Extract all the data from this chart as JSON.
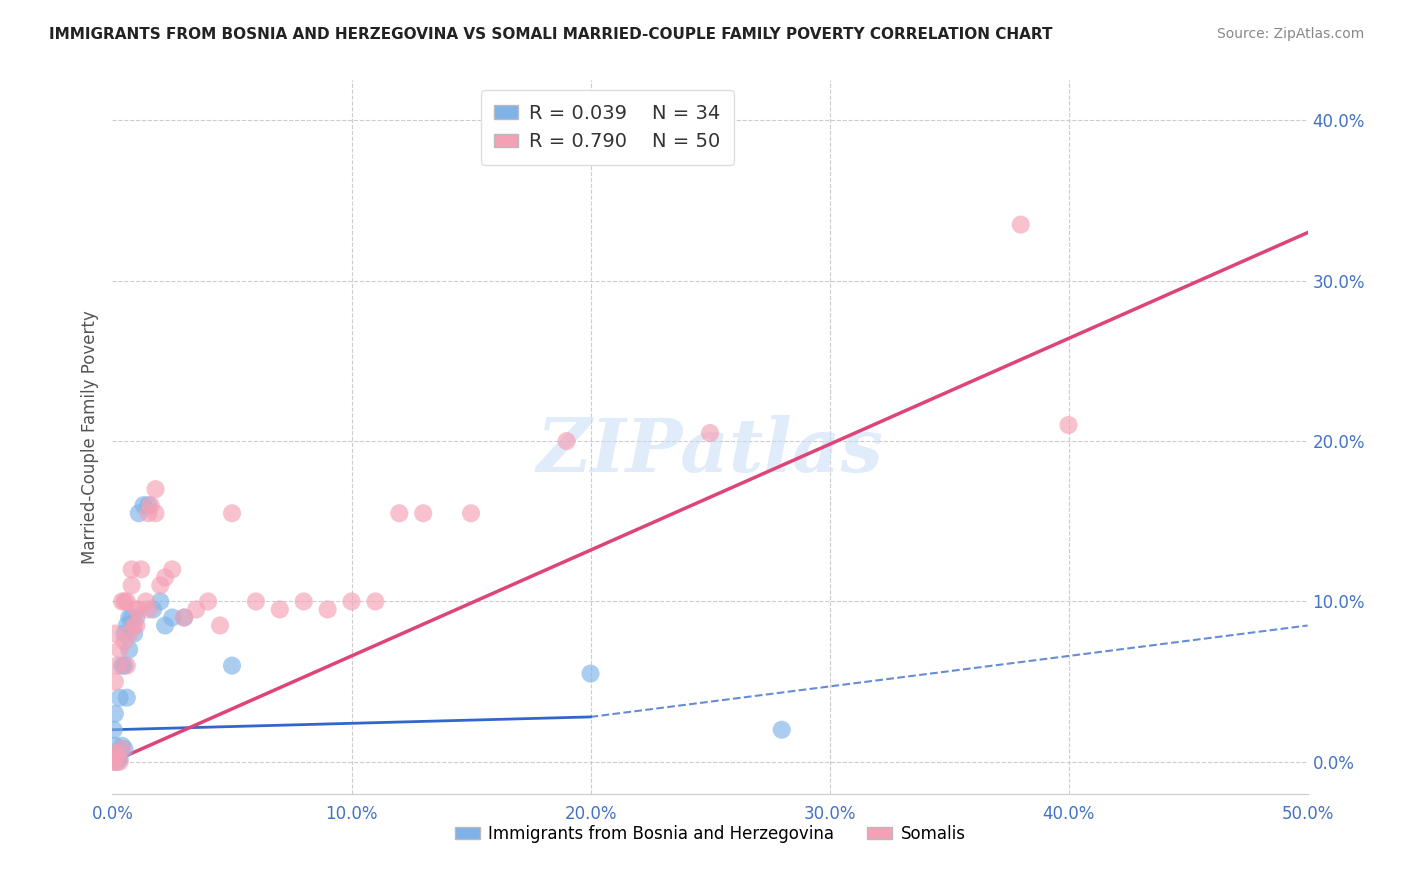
{
  "title": "IMMIGRANTS FROM BOSNIA AND HERZEGOVINA VS SOMALI MARRIED-COUPLE FAMILY POVERTY CORRELATION CHART",
  "source": "Source: ZipAtlas.com",
  "ylabel": "Married-Couple Family Poverty",
  "legend_label_1": "Immigrants from Bosnia and Herzegovina",
  "legend_label_2": "Somalis",
  "R1": 0.039,
  "N1": 34,
  "R2": 0.79,
  "N2": 50,
  "xlim": [
    0.0,
    0.5
  ],
  "ylim": [
    -0.02,
    0.425
  ],
  "xticks": [
    0.0,
    0.1,
    0.2,
    0.3,
    0.4,
    0.5
  ],
  "yticks": [
    0.0,
    0.1,
    0.2,
    0.3,
    0.4
  ],
  "color_blue": "#7fb3e8",
  "color_pink": "#f4a0b5",
  "line_color_blue": "#3366cc",
  "line_color_pink": "#dd4477",
  "bg_color": "#ffffff",
  "watermark": "ZIPatlas",
  "blue_scatter_x": [
    0.0005,
    0.001,
    0.001,
    0.001,
    0.0015,
    0.002,
    0.002,
    0.002,
    0.003,
    0.003,
    0.003,
    0.004,
    0.004,
    0.005,
    0.005,
    0.005,
    0.006,
    0.006,
    0.007,
    0.007,
    0.008,
    0.009,
    0.01,
    0.011,
    0.013,
    0.015,
    0.017,
    0.02,
    0.022,
    0.025,
    0.03,
    0.05,
    0.2,
    0.28
  ],
  "blue_scatter_y": [
    0.02,
    0.005,
    0.01,
    0.03,
    0.005,
    0.0,
    0.003,
    0.005,
    0.002,
    0.005,
    0.04,
    0.01,
    0.06,
    0.008,
    0.06,
    0.08,
    0.04,
    0.085,
    0.07,
    0.09,
    0.09,
    0.08,
    0.09,
    0.155,
    0.16,
    0.16,
    0.095,
    0.1,
    0.085,
    0.09,
    0.09,
    0.06,
    0.055,
    0.02
  ],
  "pink_scatter_x": [
    0.0004,
    0.0005,
    0.001,
    0.001,
    0.001,
    0.002,
    0.002,
    0.003,
    0.003,
    0.004,
    0.004,
    0.005,
    0.005,
    0.006,
    0.006,
    0.007,
    0.008,
    0.008,
    0.009,
    0.01,
    0.01,
    0.011,
    0.012,
    0.014,
    0.015,
    0.015,
    0.016,
    0.018,
    0.018,
    0.02,
    0.022,
    0.025,
    0.03,
    0.035,
    0.04,
    0.045,
    0.05,
    0.06,
    0.07,
    0.08,
    0.09,
    0.1,
    0.11,
    0.12,
    0.13,
    0.15,
    0.19,
    0.25,
    0.38,
    0.4
  ],
  "pink_scatter_y": [
    0.005,
    0.0,
    0.08,
    0.05,
    0.0,
    0.005,
    0.06,
    0.0,
    0.07,
    0.008,
    0.1,
    0.075,
    0.1,
    0.06,
    0.1,
    0.08,
    0.11,
    0.12,
    0.085,
    0.085,
    0.095,
    0.095,
    0.12,
    0.1,
    0.095,
    0.155,
    0.16,
    0.155,
    0.17,
    0.11,
    0.115,
    0.12,
    0.09,
    0.095,
    0.1,
    0.085,
    0.155,
    0.1,
    0.095,
    0.1,
    0.095,
    0.1,
    0.1,
    0.155,
    0.155,
    0.155,
    0.2,
    0.205,
    0.335,
    0.21
  ],
  "blue_line_x0": 0.0,
  "blue_line_x_solid_end": 0.2,
  "blue_line_x1": 0.5,
  "blue_line_y0": 0.02,
  "blue_line_y_solid_end": 0.028,
  "blue_line_y1": 0.085,
  "pink_line_x0": 0.0,
  "pink_line_x1": 0.5,
  "pink_line_y0": 0.0,
  "pink_line_y1": 0.33
}
